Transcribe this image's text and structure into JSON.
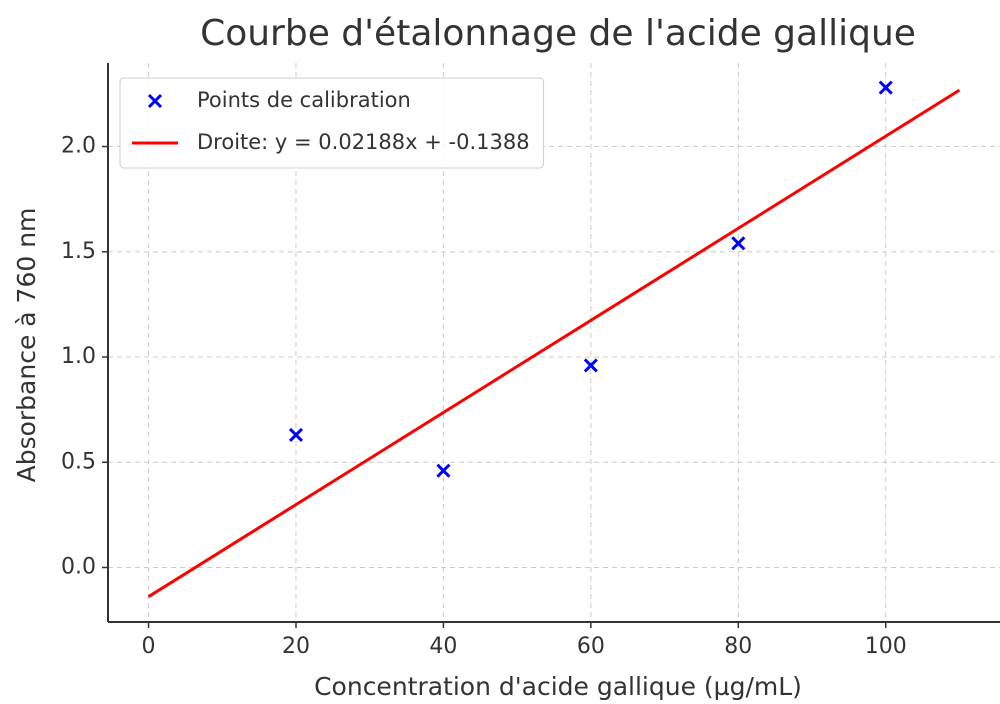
{
  "chart_data": {
    "type": "scatter",
    "title": "Courbe d'étalonnage de l'acide gallique",
    "x_label": "Concentration d'acide gallique (µg/mL)",
    "y_label": "Absorbance à 760 nm",
    "series": [
      {
        "name": "Points de calibration",
        "type": "scatter",
        "color": "#0000ff",
        "x": [
          20,
          40,
          60,
          80,
          100
        ],
        "values": [
          0.63,
          0.46,
          0.96,
          1.54,
          2.28
        ]
      },
      {
        "name": "Droite: y = 0.02188x + -0.1388",
        "type": "line",
        "color": "#ff0000",
        "x": [
          0,
          110
        ],
        "values": [
          -0.1388,
          2.268
        ]
      }
    ],
    "xlim": [
      -5.5,
      115.5
    ],
    "ylim": [
      -0.259,
      2.397
    ],
    "xticks": [
      0,
      20,
      40,
      60,
      80,
      100
    ],
    "yticks": [
      {
        "value": 0,
        "label": "0.0"
      },
      {
        "value": 0.5,
        "label": "0.5"
      },
      {
        "value": 1,
        "label": "1.0"
      },
      {
        "value": 1.5,
        "label": "1.5"
      },
      {
        "value": 2,
        "label": "2.0"
      }
    ],
    "grid": true,
    "legend": "upper left"
  }
}
